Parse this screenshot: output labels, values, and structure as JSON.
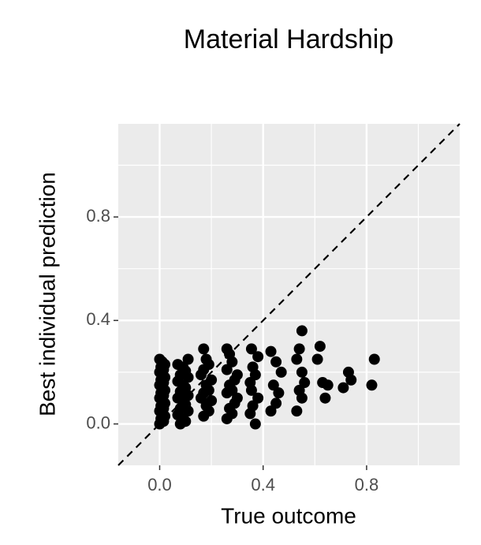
{
  "chart_data": {
    "type": "scatter",
    "title": "Material Hardship",
    "x_label": "True outcome",
    "y_label": "Best individual prediction",
    "xlim": [
      -0.16,
      1.16
    ],
    "ylim": [
      -0.16,
      1.16
    ],
    "xticks": [
      {
        "value": 0,
        "label": "0.0"
      },
      0.4,
      0.8
    ],
    "yticks": [
      {
        "value": 0,
        "label": "0.0"
      },
      0.4,
      0.8
    ],
    "grid": true,
    "color": "#000000",
    "reference_line": "y=x",
    "x": [
      0,
      0.015,
      0.005,
      0.02,
      0.01,
      0,
      0.015,
      0.005,
      0.02,
      0.01,
      0,
      0.015,
      0.005,
      0.02,
      0.01,
      0,
      0.015,
      0.005,
      0.02,
      0.01,
      0,
      0.015,
      0.005,
      0.02,
      0.01,
      0,
      0.08,
      0.1,
      0.09,
      0.07,
      0.11,
      0.08,
      0.1,
      0.09,
      0.07,
      0.11,
      0.08,
      0.1,
      0.09,
      0.07,
      0.11,
      0.08,
      0.1,
      0.09,
      0.07,
      0.11,
      0.17,
      0.19,
      0.18,
      0.2,
      0.16,
      0.17,
      0.19,
      0.18,
      0.2,
      0.16,
      0.17,
      0.19,
      0.18,
      0.17,
      0.26,
      0.28,
      0.27,
      0.29,
      0.3,
      0.26,
      0.28,
      0.27,
      0.29,
      0.3,
      0.26,
      0.28,
      0.27,
      0.26,
      0.35,
      0.37,
      0.36,
      0.38,
      0.355,
      0.35,
      0.37,
      0.36,
      0.38,
      0.355,
      0.43,
      0.45,
      0.46,
      0.44,
      0.47,
      0.45,
      0.43,
      0.53,
      0.55,
      0.54,
      0.56,
      0.55,
      0.53,
      0.54,
      0.55,
      0.62,
      0.61,
      0.63,
      0.65,
      0.64,
      0.73,
      0.71,
      0.74,
      0.83,
      0.82
    ],
    "values": [
      0,
      0.01,
      0.02,
      0.03,
      0.04,
      0.05,
      0.06,
      0.07,
      0.08,
      0.09,
      0.1,
      0.11,
      0.12,
      0.13,
      0.14,
      0.15,
      0.16,
      0.17,
      0.18,
      0.19,
      0.2,
      0.21,
      0.22,
      0.23,
      0.24,
      0.25,
      0,
      0.01,
      0.02,
      0.035,
      0.05,
      0.06,
      0.075,
      0.09,
      0.1,
      0.11,
      0.125,
      0.14,
      0.15,
      0.165,
      0.18,
      0.19,
      0.205,
      0.22,
      0.23,
      0.25,
      0.03,
      0.05,
      0.07,
      0.09,
      0.1,
      0.12,
      0.13,
      0.15,
      0.17,
      0.19,
      0.21,
      0.23,
      0.25,
      0.29,
      0.02,
      0.04,
      0.06,
      0.08,
      0.1,
      0.12,
      0.13,
      0.15,
      0.17,
      0.19,
      0.21,
      0.24,
      0.27,
      0.29,
      0.04,
      0,
      0.07,
      0.1,
      0.13,
      0.16,
      0.19,
      0.22,
      0.26,
      0.29,
      0.05,
      0.08,
      0.12,
      0.15,
      0.2,
      0.24,
      0.28,
      0.05,
      0.1,
      0.13,
      0.16,
      0.2,
      0.25,
      0.29,
      0.36,
      0.3,
      0.25,
      0.16,
      0.15,
      0.1,
      0.2,
      0.14,
      0.17,
      0.25,
      0.15
    ]
  }
}
